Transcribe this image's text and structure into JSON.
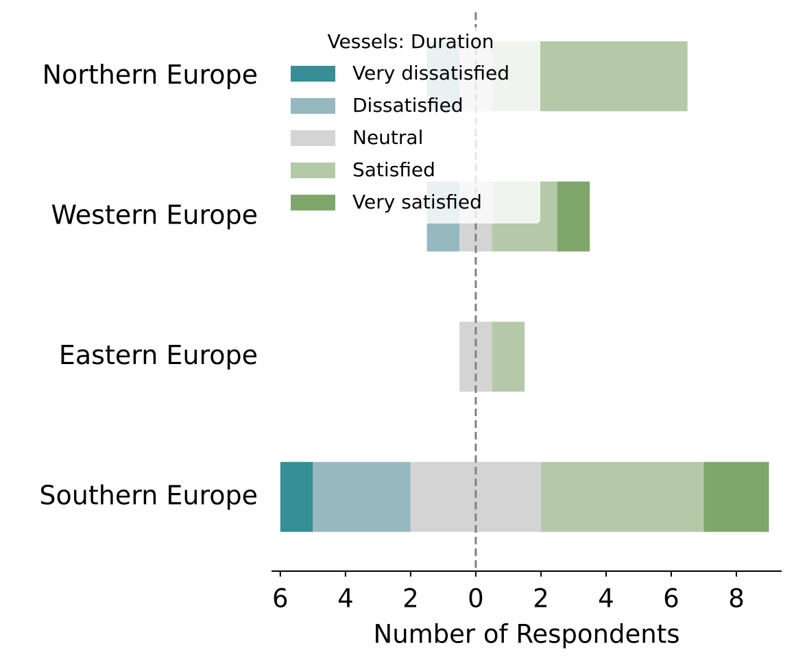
{
  "chart_data": {
    "type": "diverging_bar",
    "categories": [
      "Northern Europe",
      "Western Europe",
      "Eastern Europe",
      "Southern Europe"
    ],
    "series": [
      {
        "name": "Very dissatisfied",
        "color": "#368e96",
        "values": [
          0,
          0,
          0,
          1
        ]
      },
      {
        "name": "Dissatisfied",
        "color": "#96b9c0",
        "values": [
          1,
          1,
          0,
          3
        ]
      },
      {
        "name": "Neutral",
        "color": "#d4d4d4",
        "values": [
          1,
          1,
          1,
          4
        ]
      },
      {
        "name": "Satisfied",
        "color": "#b5c9a9",
        "values": [
          6,
          2,
          1,
          5
        ]
      },
      {
        "name": "Very satisfied",
        "color": "#7fa66b",
        "values": [
          0,
          1,
          0,
          2
        ]
      }
    ],
    "legend_title": "Vessels: Duration",
    "legend_loc": "upper center",
    "xlabel": "Number of Respondents",
    "xlim": [
      -6.27,
      9.39
    ],
    "xticks": [
      {
        "value": -6,
        "label": "6"
      },
      {
        "value": -4,
        "label": "4"
      },
      {
        "value": -2,
        "label": "2"
      },
      0,
      2,
      4,
      6,
      8
    ]
  }
}
